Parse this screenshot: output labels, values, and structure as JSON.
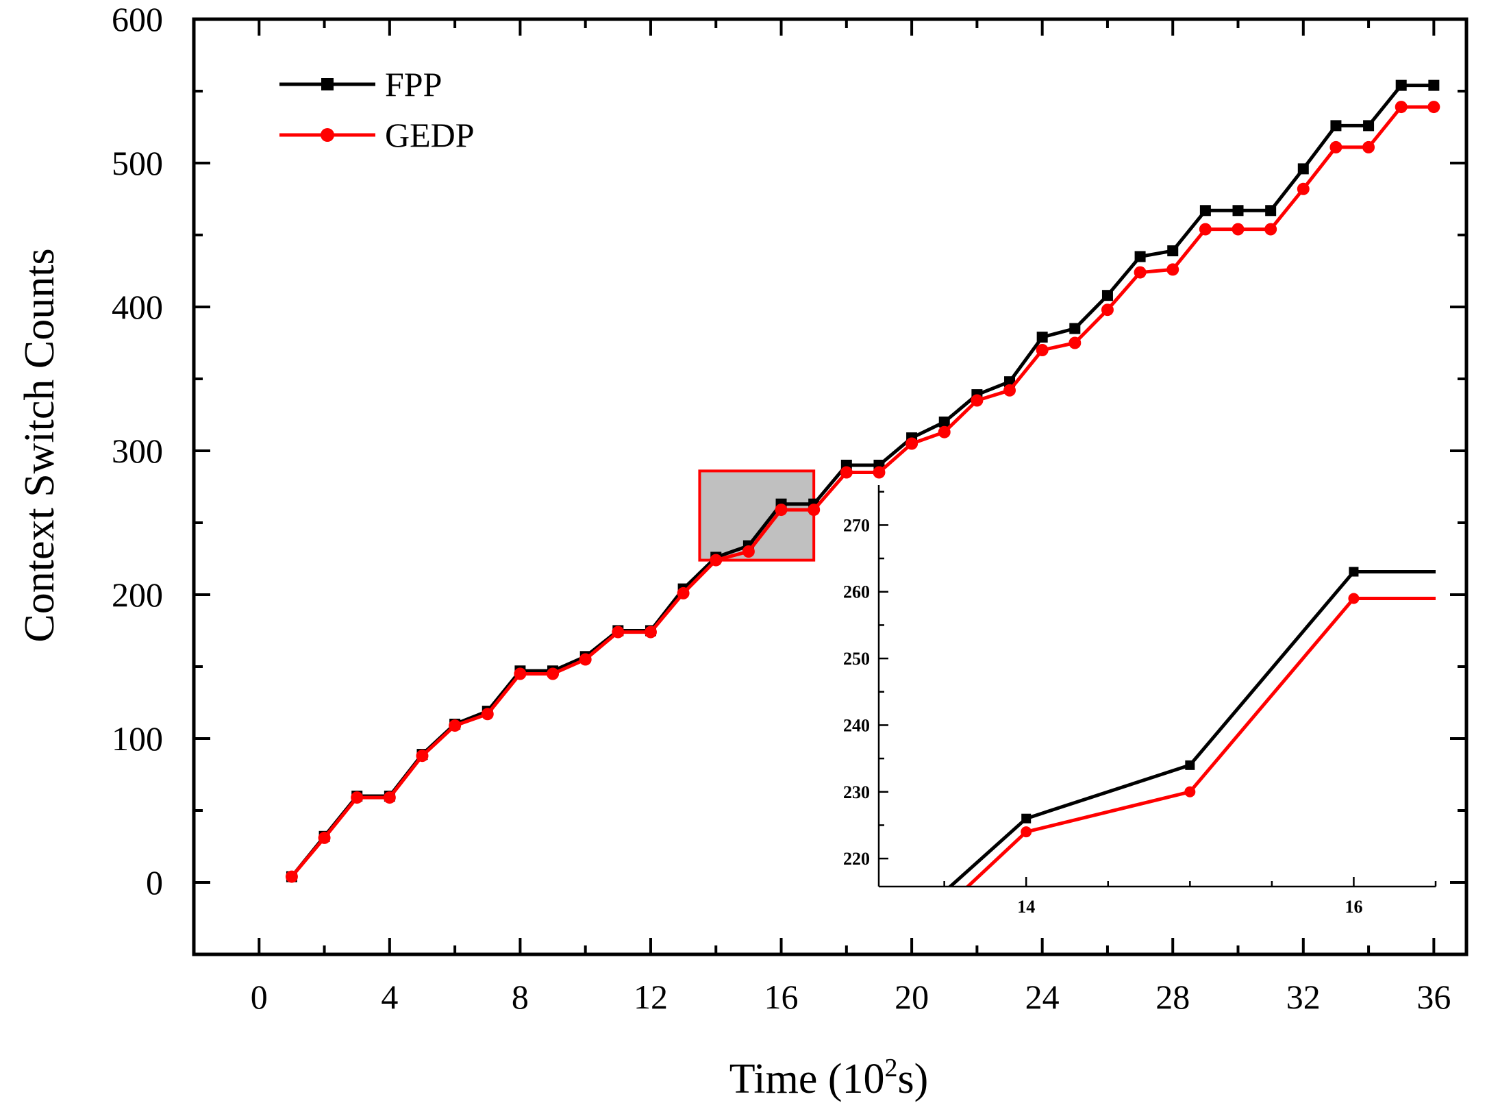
{
  "chart_data": {
    "type": "line",
    "xlabel": "Time (10",
    "xlabel_sup": "2",
    "xlabel_suffix": "s)",
    "ylabel": "Context Switch Counts",
    "xlim": [
      -2,
      37
    ],
    "ylim": [
      -50,
      600
    ],
    "xticks": [
      "0",
      "4",
      "8",
      "12",
      "16",
      "20",
      "24",
      "28",
      "32",
      "36"
    ],
    "yticks": [
      "0",
      "100",
      "200",
      "300",
      "400",
      "500",
      "600"
    ],
    "legend_position": "top-left",
    "x": [
      1,
      2,
      3,
      4,
      5,
      6,
      7,
      8,
      9,
      10,
      11,
      12,
      13,
      14,
      15,
      16,
      17,
      18,
      19,
      20,
      21,
      22,
      23,
      24,
      25,
      26,
      27,
      28,
      29,
      30,
      31,
      32,
      33,
      34,
      35,
      36
    ],
    "series": [
      {
        "name": "FPP",
        "color": "#000000",
        "marker": "square",
        "values": [
          4,
          32,
          60,
          60,
          89,
          110,
          119,
          147,
          147,
          157,
          175,
          175,
          204,
          226,
          234,
          263,
          263,
          290,
          290,
          309,
          320,
          339,
          348,
          379,
          385,
          408,
          435,
          439,
          467,
          467,
          467,
          496,
          526,
          526,
          554,
          554
        ]
      },
      {
        "name": "GEDP",
        "color": "#ff0000",
        "marker": "circle",
        "values": [
          4,
          31,
          59,
          59,
          88,
          109,
          117,
          145,
          145,
          155,
          174,
          174,
          201,
          224,
          230,
          259,
          259,
          285,
          285,
          305,
          313,
          335,
          342,
          370,
          375,
          398,
          424,
          426,
          454,
          454,
          454,
          482,
          511,
          511,
          539,
          539
        ]
      }
    ],
    "zoom_box": {
      "x_range": [
        13.5,
        17
      ],
      "y_range": [
        224,
        286
      ],
      "fill": "#c0c0c0",
      "border": "#ff0000"
    },
    "inset": {
      "xlim": [
        13.1,
        16.5
      ],
      "ylim": [
        215.8,
        276
      ],
      "xticks": [
        "14",
        "16"
      ],
      "yticks": [
        "220",
        "230",
        "240",
        "250",
        "260",
        "270"
      ],
      "x": [
        13,
        14,
        15,
        16,
        17
      ],
      "series": [
        {
          "name": "FPP",
          "color": "#000000",
          "values": [
            204,
            226,
            234,
            263,
            263
          ]
        },
        {
          "name": "GEDP",
          "color": "#ff0000",
          "values": [
            201,
            224,
            230,
            259,
            259
          ]
        }
      ]
    }
  }
}
